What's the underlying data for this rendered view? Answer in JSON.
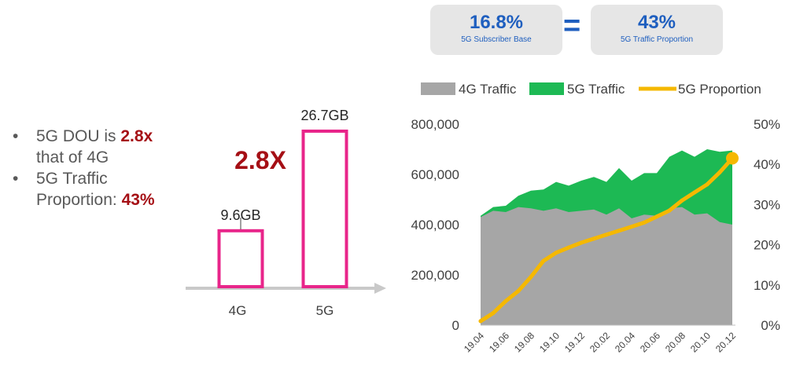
{
  "kpis": [
    {
      "value": "16.8%",
      "label": "5G Subscriber Base"
    },
    {
      "value": "43%",
      "label": "5G Traffic Proportion"
    }
  ],
  "equals_sign": "=",
  "bullets": [
    {
      "pre": "5G DOU is ",
      "hl": "2.8x",
      "line2": "that of 4G"
    },
    {
      "pre": "5G Traffic",
      "line2": "Proportion: ",
      "hl": "43%"
    }
  ],
  "colors": {
    "accent_red": "#a50f15",
    "kpi_blue": "#1f5fbf",
    "bar_outline": "#e8258a",
    "traffic_4g": "#a6a6a6",
    "traffic_5g": "#1db954",
    "proportion_line": "#f5b800"
  },
  "chart_data": [
    {
      "type": "bar",
      "categories": [
        "4G",
        "5G"
      ],
      "values": [
        9.6,
        26.7
      ],
      "data_labels": [
        "9.6GB",
        "26.7GB"
      ],
      "annotation": "2.8X",
      "ylim": [
        0,
        30
      ]
    },
    {
      "type": "area",
      "legend": [
        "4G Traffic",
        "5G Traffic",
        "5G Proportion"
      ],
      "legend_position": "top",
      "x": [
        "19.04",
        "19.05",
        "19.06",
        "19.07",
        "19.08",
        "19.09",
        "19.10",
        "19.11",
        "19.12",
        "20.01",
        "20.02",
        "20.03",
        "20.04",
        "20.05",
        "20.06",
        "20.07",
        "20.08",
        "20.09",
        "20.10",
        "20.11",
        "20.12"
      ],
      "x_tick_labels": [
        "19.04",
        "19.06",
        "19.08",
        "19.10",
        "19.12",
        "20.02",
        "20.04",
        "20.06",
        "20.08",
        "20.10",
        "20.12"
      ],
      "y_left_ticks": [
        "800,000",
        "600,000",
        "400,000",
        "200,000",
        "0"
      ],
      "y_left_range": [
        0,
        800000
      ],
      "y_right_ticks": [
        "50%",
        "40%",
        "30%",
        "20%",
        "10%",
        "0%"
      ],
      "y_right_range": [
        0,
        0.5
      ],
      "series": [
        {
          "name": "4G Traffic",
          "axis": "left",
          "values": [
            430000,
            455000,
            450000,
            470000,
            465000,
            455000,
            465000,
            450000,
            455000,
            460000,
            440000,
            465000,
            425000,
            440000,
            435000,
            465000,
            470000,
            440000,
            445000,
            410000,
            400000
          ]
        },
        {
          "name": "5G Traffic",
          "axis": "left",
          "values": [
            435000,
            470000,
            475000,
            515000,
            535000,
            540000,
            570000,
            555000,
            575000,
            590000,
            570000,
            625000,
            575000,
            605000,
            605000,
            670000,
            695000,
            670000,
            700000,
            690000,
            695000
          ]
        },
        {
          "name": "5G Proportion",
          "axis": "right",
          "values": [
            0.01,
            0.03,
            0.06,
            0.085,
            0.12,
            0.16,
            0.18,
            0.193,
            0.205,
            0.215,
            0.225,
            0.235,
            0.245,
            0.255,
            0.27,
            0.285,
            0.31,
            0.33,
            0.35,
            0.38,
            0.415
          ]
        }
      ]
    }
  ]
}
